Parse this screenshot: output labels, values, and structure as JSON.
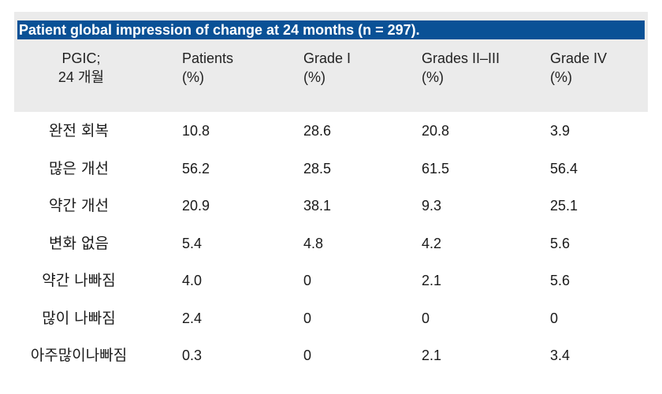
{
  "table": {
    "title": "Patient global impression of change at 24 months (n = 297).",
    "headers": [
      {
        "line1": "PGIC;",
        "line2": "24 개월"
      },
      {
        "line1": "Patients",
        "line2": "(%)"
      },
      {
        "line1": "Grade I",
        "line2": "(%)"
      },
      {
        "line1": "Grades II–III",
        "line2": "(%)"
      },
      {
        "line1": "Grade IV",
        "line2": "(%)"
      }
    ],
    "rows": [
      {
        "label": "완전 회복",
        "values": [
          "10.8",
          "28.6",
          "20.8",
          "3.9"
        ]
      },
      {
        "label": "많은 개선",
        "values": [
          "56.2",
          "28.5",
          "61.5",
          "56.4"
        ]
      },
      {
        "label": "약간 개선",
        "values": [
          "20.9",
          "38.1",
          "9.3",
          "25.1"
        ]
      },
      {
        "label": "변화 없음",
        "values": [
          "5.4",
          "4.8",
          "4.2",
          "5.6"
        ]
      },
      {
        "label": "약간 나빠짐",
        "values": [
          "4.0",
          "0",
          "2.1",
          "5.6"
        ]
      },
      {
        "label": "많이 나빠짐",
        "values": [
          "2.4",
          "0",
          "0",
          "0"
        ]
      },
      {
        "label": "아주많이나빠짐",
        "values": [
          "0.3",
          "0",
          "2.1",
          "3.4"
        ]
      }
    ]
  },
  "colors": {
    "title_background": "#0a5196",
    "header_background": "#ebebeb",
    "title_text": "#ffffff"
  }
}
